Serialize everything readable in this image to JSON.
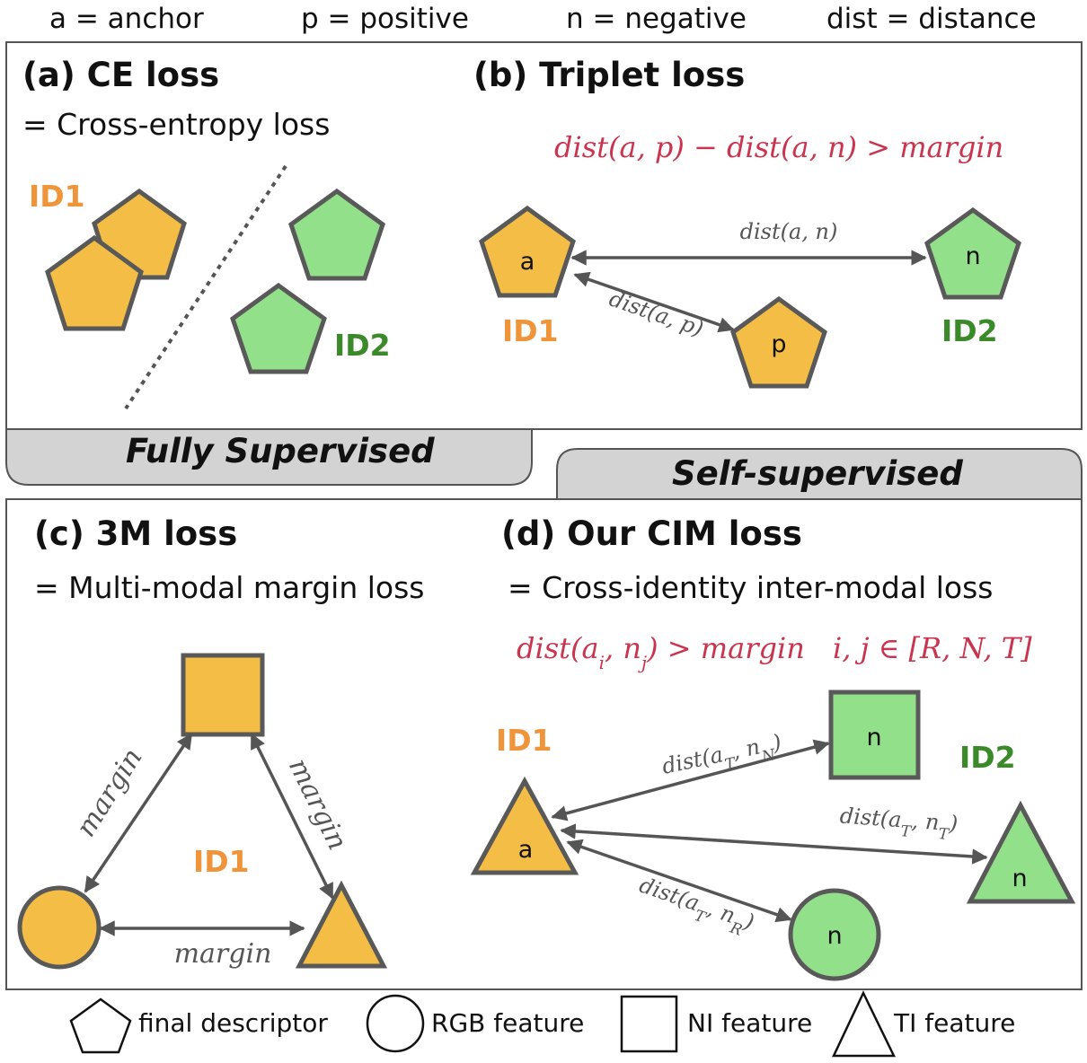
{
  "legend_top": {
    "anchor": "a = anchor",
    "positive": "p = positive",
    "negative": "n = negative",
    "distance": "dist = distance"
  },
  "panel_a": {
    "title": "(a) CE loss",
    "subtitle": "= Cross-entropy loss",
    "id1": "ID1",
    "id2": "ID2"
  },
  "panel_b": {
    "title": "(b) Triplet loss",
    "formula": "dist(a, p) − dist(a, n) > margin",
    "anchor_label": "a",
    "negative_label": "n",
    "positive_label": "p",
    "dist_an": "dist(a, n)",
    "dist_ap": "dist(a, p)",
    "id1": "ID1",
    "id2": "ID2"
  },
  "tabs": {
    "fully": "Fully Supervised",
    "self": "Self-supervised"
  },
  "panel_c": {
    "title": "(c) 3M loss",
    "subtitle": "= Multi-modal margin loss",
    "margin_left": "margin",
    "margin_right": "margin",
    "margin_bottom": "margin",
    "id1": "ID1"
  },
  "panel_d": {
    "title": "(d) Our CIM loss",
    "subtitle": "= Cross-identity inter-modal loss",
    "formula_left": "dist(a",
    "formula_left_sub_i": "i",
    "formula_left_mid": ", n",
    "formula_left_sub_j": "j",
    "formula_left_end": ") > margin",
    "formula_right": "i, j ∈ [R, N, T]",
    "anchor_label": "a",
    "n_square": "n",
    "n_triangle": "n",
    "n_circle": "n",
    "dist_N": {
      "pre": "dist(a",
      "sub1": "T",
      "mid": ", n",
      "sub2": "N",
      "post": ")"
    },
    "dist_T": {
      "pre": "dist(a",
      "sub1": "T",
      "mid": ", n",
      "sub2": "T",
      "post": ")"
    },
    "dist_R": {
      "pre": "dist(a",
      "sub1": "T",
      "mid": ", n",
      "sub2": "R",
      "post": ")"
    },
    "id1": "ID1",
    "id2": "ID2"
  },
  "legend_bottom": {
    "final": "final descriptor",
    "rgb": "RGB feature",
    "ni": "NI feature",
    "ti": "TI feature"
  },
  "colors": {
    "orange_fill": "#f4bd45",
    "green_fill": "#92e08a",
    "red_formula": "#c9344e",
    "id_orange": "#f0943a",
    "id_green": "#3a8a2a",
    "tab_gray": "#d3d3d3"
  }
}
